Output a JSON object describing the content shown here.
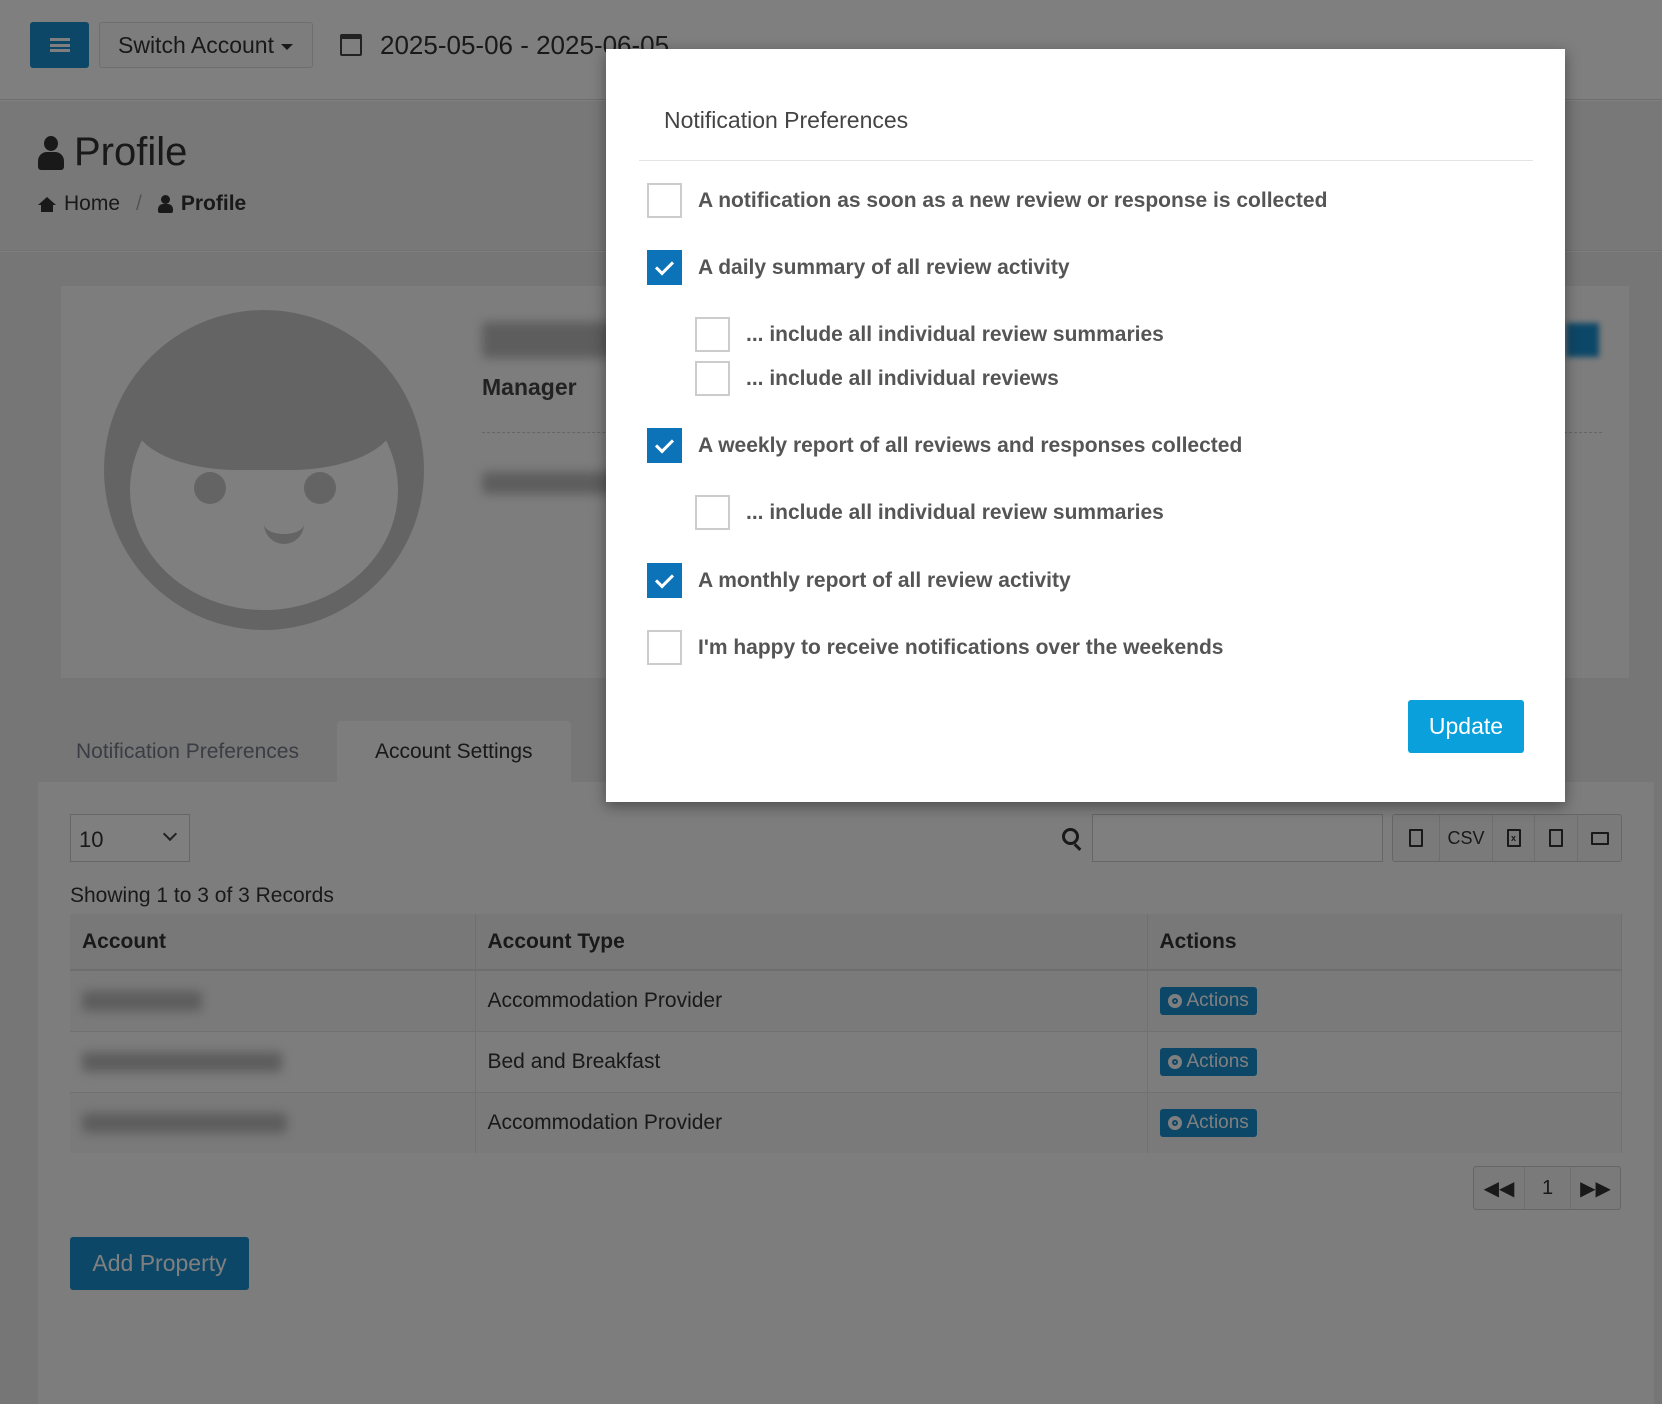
{
  "topbar": {
    "menu_icon": "hamburger-icon",
    "switch_account": "Switch Account",
    "calendar_icon": "calendar-icon",
    "date_range": "2025-05-06 - 2025-06-05"
  },
  "header": {
    "title": "Profile",
    "breadcrumb": {
      "home": "Home",
      "current": "Profile"
    }
  },
  "profile": {
    "role": "Manager"
  },
  "tabs": [
    {
      "label": "Notification Preferences",
      "active": false
    },
    {
      "label": "Account Settings",
      "active": true
    }
  ],
  "table_controls": {
    "page_length": "10",
    "export_buttons": [
      "copy-icon",
      "CSV",
      "excel-icon",
      "pdf-icon",
      "print-icon"
    ],
    "csv": "CSV",
    "info": "Showing 1 to 3 of 3 Records"
  },
  "table": {
    "headers": [
      "Account",
      "Account Type",
      "Actions"
    ],
    "rows": [
      {
        "type": "Accommodation Provider",
        "action": "Actions"
      },
      {
        "type": "Bed and Breakfast",
        "action": "Actions"
      },
      {
        "type": "Accommodation Provider",
        "action": "Actions"
      }
    ]
  },
  "pagination": {
    "page": "1"
  },
  "add_property": "Add Property",
  "modal": {
    "title": "Notification Preferences",
    "update": "Update",
    "options": [
      {
        "label": "A notification as soon as a new review or response is collected",
        "checked": false
      },
      {
        "label": "A daily summary of all review activity",
        "checked": true
      },
      {
        "label": "... include all individual review summaries",
        "checked": false
      },
      {
        "label": "... include all individual reviews",
        "checked": false
      },
      {
        "label": "A weekly report of all reviews and responses collected",
        "checked": true
      },
      {
        "label": "... include all individual review summaries",
        "checked": false
      },
      {
        "label": "A monthly report of all review activity",
        "checked": true
      },
      {
        "label": "I'm happy to receive notifications over the weekends",
        "checked": false
      }
    ]
  },
  "colors": {
    "primary": "#1a8fcf",
    "checkbox": "#0d73b8",
    "update": "#0aa0dc"
  }
}
